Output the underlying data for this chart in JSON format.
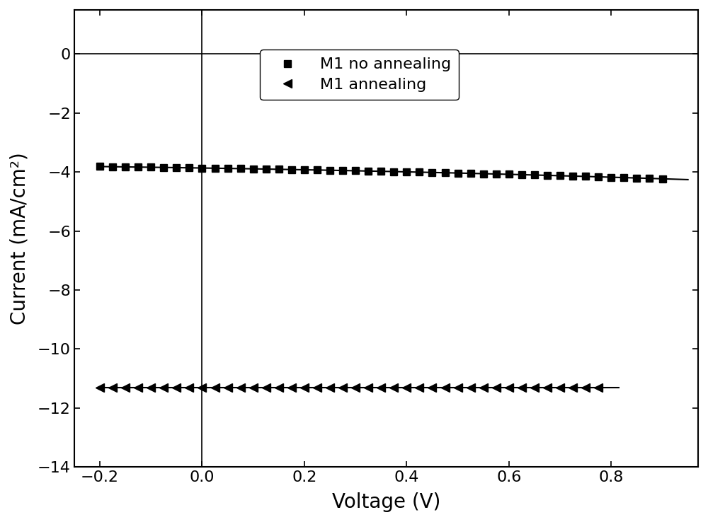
{
  "title": "",
  "xlabel": "Voltage (V)",
  "ylabel": "Current (mA/cm²)",
  "xlim": [
    -0.25,
    0.97
  ],
  "ylim": [
    -14,
    1.5
  ],
  "xticks": [
    -0.2,
    0.0,
    0.2,
    0.4,
    0.6,
    0.8
  ],
  "yticks": [
    0,
    -2,
    -4,
    -6,
    -8,
    -10,
    -12,
    -14
  ],
  "legend_labels": [
    "M1 no annealing",
    "M1 annealing"
  ],
  "background_color": "#ffffff",
  "no_anneal": {
    "jsc": -6.5,
    "voc": 0.92,
    "rsh": 120.0,
    "rs": 0.5,
    "n_ideality": 30.0
  },
  "anneal": {
    "jsc": -11.55,
    "voc": 0.775,
    "rsh": 1000.0,
    "rs": 2.0,
    "n_ideality": 7.5
  },
  "no_anneal_markers_v": [
    -0.2,
    -0.175,
    -0.15,
    -0.125,
    -0.1,
    -0.075,
    -0.05,
    -0.025,
    0.0,
    0.025,
    0.05,
    0.075,
    0.1,
    0.125,
    0.15,
    0.175,
    0.2,
    0.225,
    0.25,
    0.275,
    0.3,
    0.325,
    0.35,
    0.375,
    0.4,
    0.425,
    0.45,
    0.475,
    0.5,
    0.525,
    0.55,
    0.575,
    0.6,
    0.625,
    0.65,
    0.675,
    0.7,
    0.725,
    0.75,
    0.775,
    0.8,
    0.825,
    0.85,
    0.875,
    0.9
  ],
  "anneal_markers_v": [
    -0.2,
    -0.175,
    -0.15,
    -0.125,
    -0.1,
    -0.075,
    -0.05,
    -0.025,
    0.0,
    0.025,
    0.05,
    0.075,
    0.1,
    0.125,
    0.15,
    0.175,
    0.2,
    0.225,
    0.25,
    0.275,
    0.3,
    0.325,
    0.35,
    0.375,
    0.4,
    0.425,
    0.45,
    0.475,
    0.5,
    0.525,
    0.55,
    0.575,
    0.6,
    0.625,
    0.65,
    0.675,
    0.7,
    0.725,
    0.75,
    0.775
  ]
}
